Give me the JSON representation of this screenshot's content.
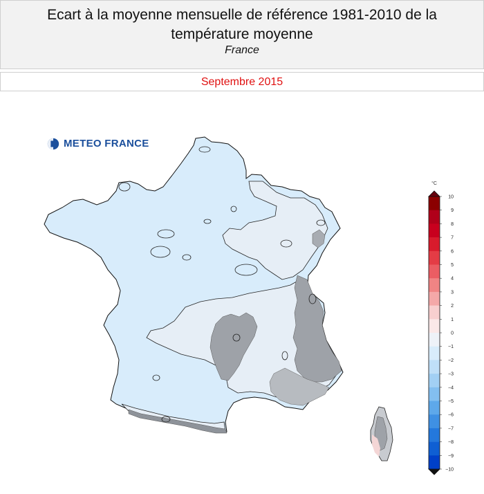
{
  "header": {
    "title_line1": "Ecart à la moyenne mensuelle de référence 1981-2010 de la",
    "title_line2": "température moyenne",
    "subtitle": "France"
  },
  "period": "Septembre 2015",
  "logo": {
    "text": "METEO FRANCE"
  },
  "legend": {
    "unit": "°C",
    "ticks": [
      10,
      9,
      8,
      7,
      6,
      5,
      4,
      3,
      2,
      1,
      0,
      -1,
      -2,
      -3,
      -4,
      -5,
      -6,
      -7,
      -8,
      -9,
      -10
    ],
    "colors": [
      "#67000d",
      "#8b0000",
      "#b0001a",
      "#c8001e",
      "#d81b2c",
      "#e43c45",
      "#eb5d63",
      "#f08484",
      "#f4a8a8",
      "#f8cfcf",
      "#fbe8e8",
      "#eef2f8",
      "#d8ecfb",
      "#bfdff8",
      "#a2d0f4",
      "#83bff0",
      "#5ea8ea",
      "#3f90e3",
      "#2478dc",
      "#0f5fd3",
      "#0040c8"
    ]
  },
  "colors": {
    "sea": "#ffffff",
    "anomaly_minus1": "#e6eef6",
    "anomaly_minus2": "#d8ecfb",
    "relief_grey": "#9ea2a8",
    "title_red": "#e01010"
  }
}
